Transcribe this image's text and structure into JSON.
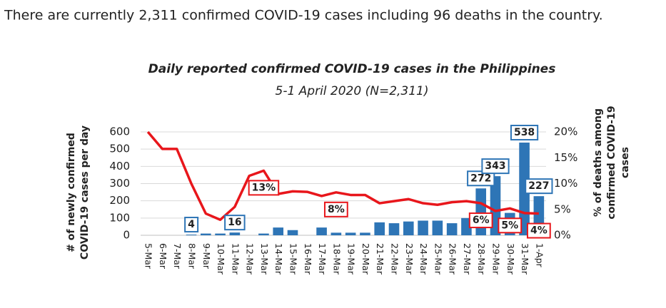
{
  "header": {
    "text": "There are currently 2,311 confirmed COVID-19 cases including 96 deaths in the country."
  },
  "chart_data": {
    "type": "combo",
    "title": "Daily reported confirmed COVID-19 cases in the Philippines",
    "subtitle": "5-1 April 2020 (N=2,311)",
    "ylabel": [
      "# of newly confirmed",
      "COVID-19 cases per day"
    ],
    "y2label": [
      "% of deaths among",
      "confirmed COVID-19",
      "cases"
    ],
    "categories": [
      "5-Mar",
      "6-Mar",
      "7-Mar",
      "8-Mar",
      "9-Mar",
      "10-Mar",
      "11-Mar",
      "12-Mar",
      "13-Mar",
      "14-Mar",
      "15-Mar",
      "16-Mar",
      "17-Mar",
      "18-Mar",
      "19-Mar",
      "20-Mar",
      "21-Mar",
      "22-Mar",
      "23-Mar",
      "24-Mar",
      "25-Mar",
      "26-Mar",
      "27-Mar",
      "28-Mar",
      "29-Mar",
      "30-Mar",
      "31-Mar",
      "1-Apr"
    ],
    "series": [
      {
        "type": "bar",
        "color": "#2e75b6",
        "label_border": "#2e75b6",
        "values": [
          0,
          0,
          0,
          4,
          10,
          10,
          16,
          0,
          10,
          45,
          30,
          0,
          45,
          15,
          15,
          15,
          75,
          70,
          80,
          85,
          85,
          70,
          100,
          272,
          343,
          130,
          538,
          227
        ],
        "value_labels": [
          null,
          null,
          null,
          "4",
          null,
          null,
          "16",
          null,
          null,
          null,
          null,
          null,
          null,
          null,
          null,
          null,
          null,
          null,
          null,
          null,
          null,
          null,
          null,
          "272",
          "343",
          null,
          "538",
          "227"
        ]
      },
      {
        "type": "line",
        "axis": "y2",
        "color": "#e8161b",
        "label_border": "#e8161b",
        "values": [
          20,
          16.7,
          16.7,
          10,
          4.2,
          3,
          5.5,
          11.5,
          12.5,
          8,
          8.5,
          8.4,
          7.6,
          8.3,
          7.8,
          7.8,
          6.2,
          6.6,
          7,
          6.2,
          5.9,
          6.4,
          6.6,
          6.2,
          4.7,
          5.2,
          4.3,
          4.2
        ],
        "value_labels": [
          null,
          null,
          null,
          null,
          null,
          null,
          null,
          null,
          "13%",
          null,
          null,
          null,
          null,
          "8%",
          null,
          null,
          null,
          null,
          null,
          null,
          null,
          null,
          null,
          "6%",
          null,
          "5%",
          null,
          "4%"
        ]
      }
    ],
    "ylim": [
      0,
      600
    ],
    "yticks": [
      0,
      100,
      200,
      300,
      400,
      500,
      600
    ],
    "y2lim": [
      0,
      20
    ],
    "y2ticks": [
      {
        "value": 0,
        "label": "0%"
      },
      {
        "value": 5,
        "label": "5%"
      },
      {
        "value": 10,
        "label": "10%"
      },
      {
        "value": 15,
        "label": "15%"
      },
      {
        "value": 20,
        "label": "20%"
      }
    ],
    "grid": true
  }
}
